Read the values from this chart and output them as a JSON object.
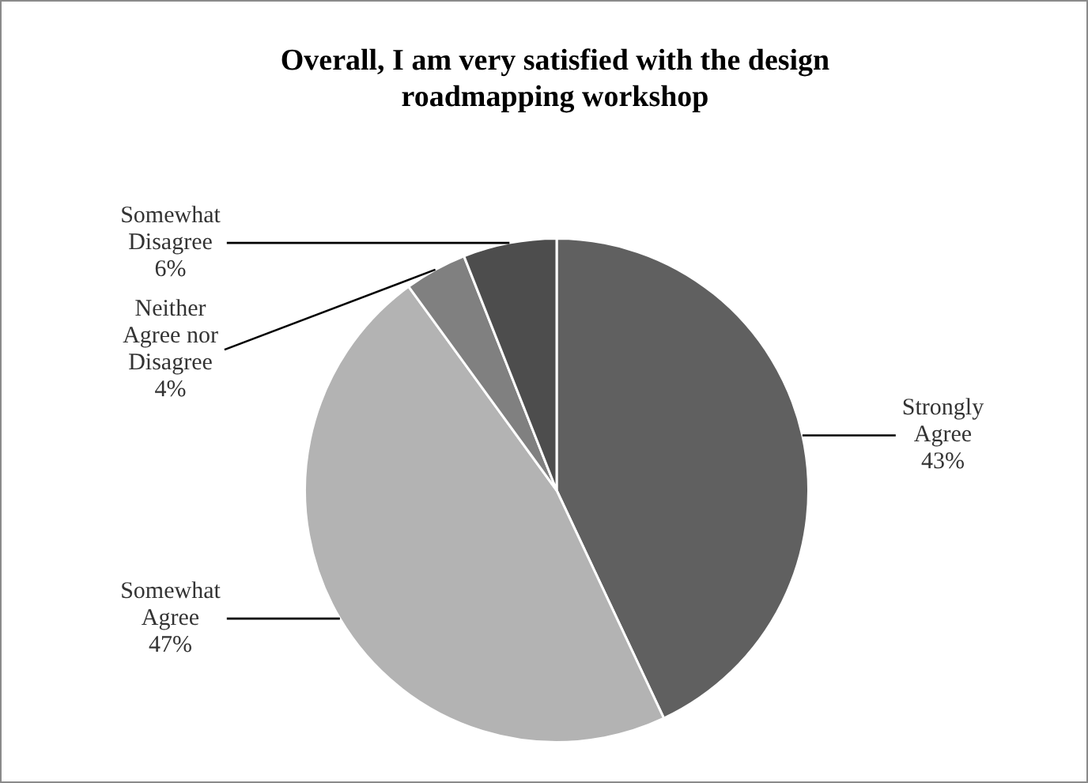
{
  "chart_data": {
    "type": "pie",
    "title": "Overall, I am very satisfied with the design roadmapping workshop",
    "categories": [
      "Strongly Agree",
      "Somewhat Agree",
      "Neither Agree nor Disagree",
      "Somewhat Disagree"
    ],
    "values": [
      43,
      47,
      4,
      6
    ],
    "value_labels": [
      "43%",
      "47%",
      "4%",
      "6%"
    ],
    "colors": [
      "#606060",
      "#b3b3b3",
      "#808080",
      "#4d4d4d"
    ],
    "legend": false
  }
}
